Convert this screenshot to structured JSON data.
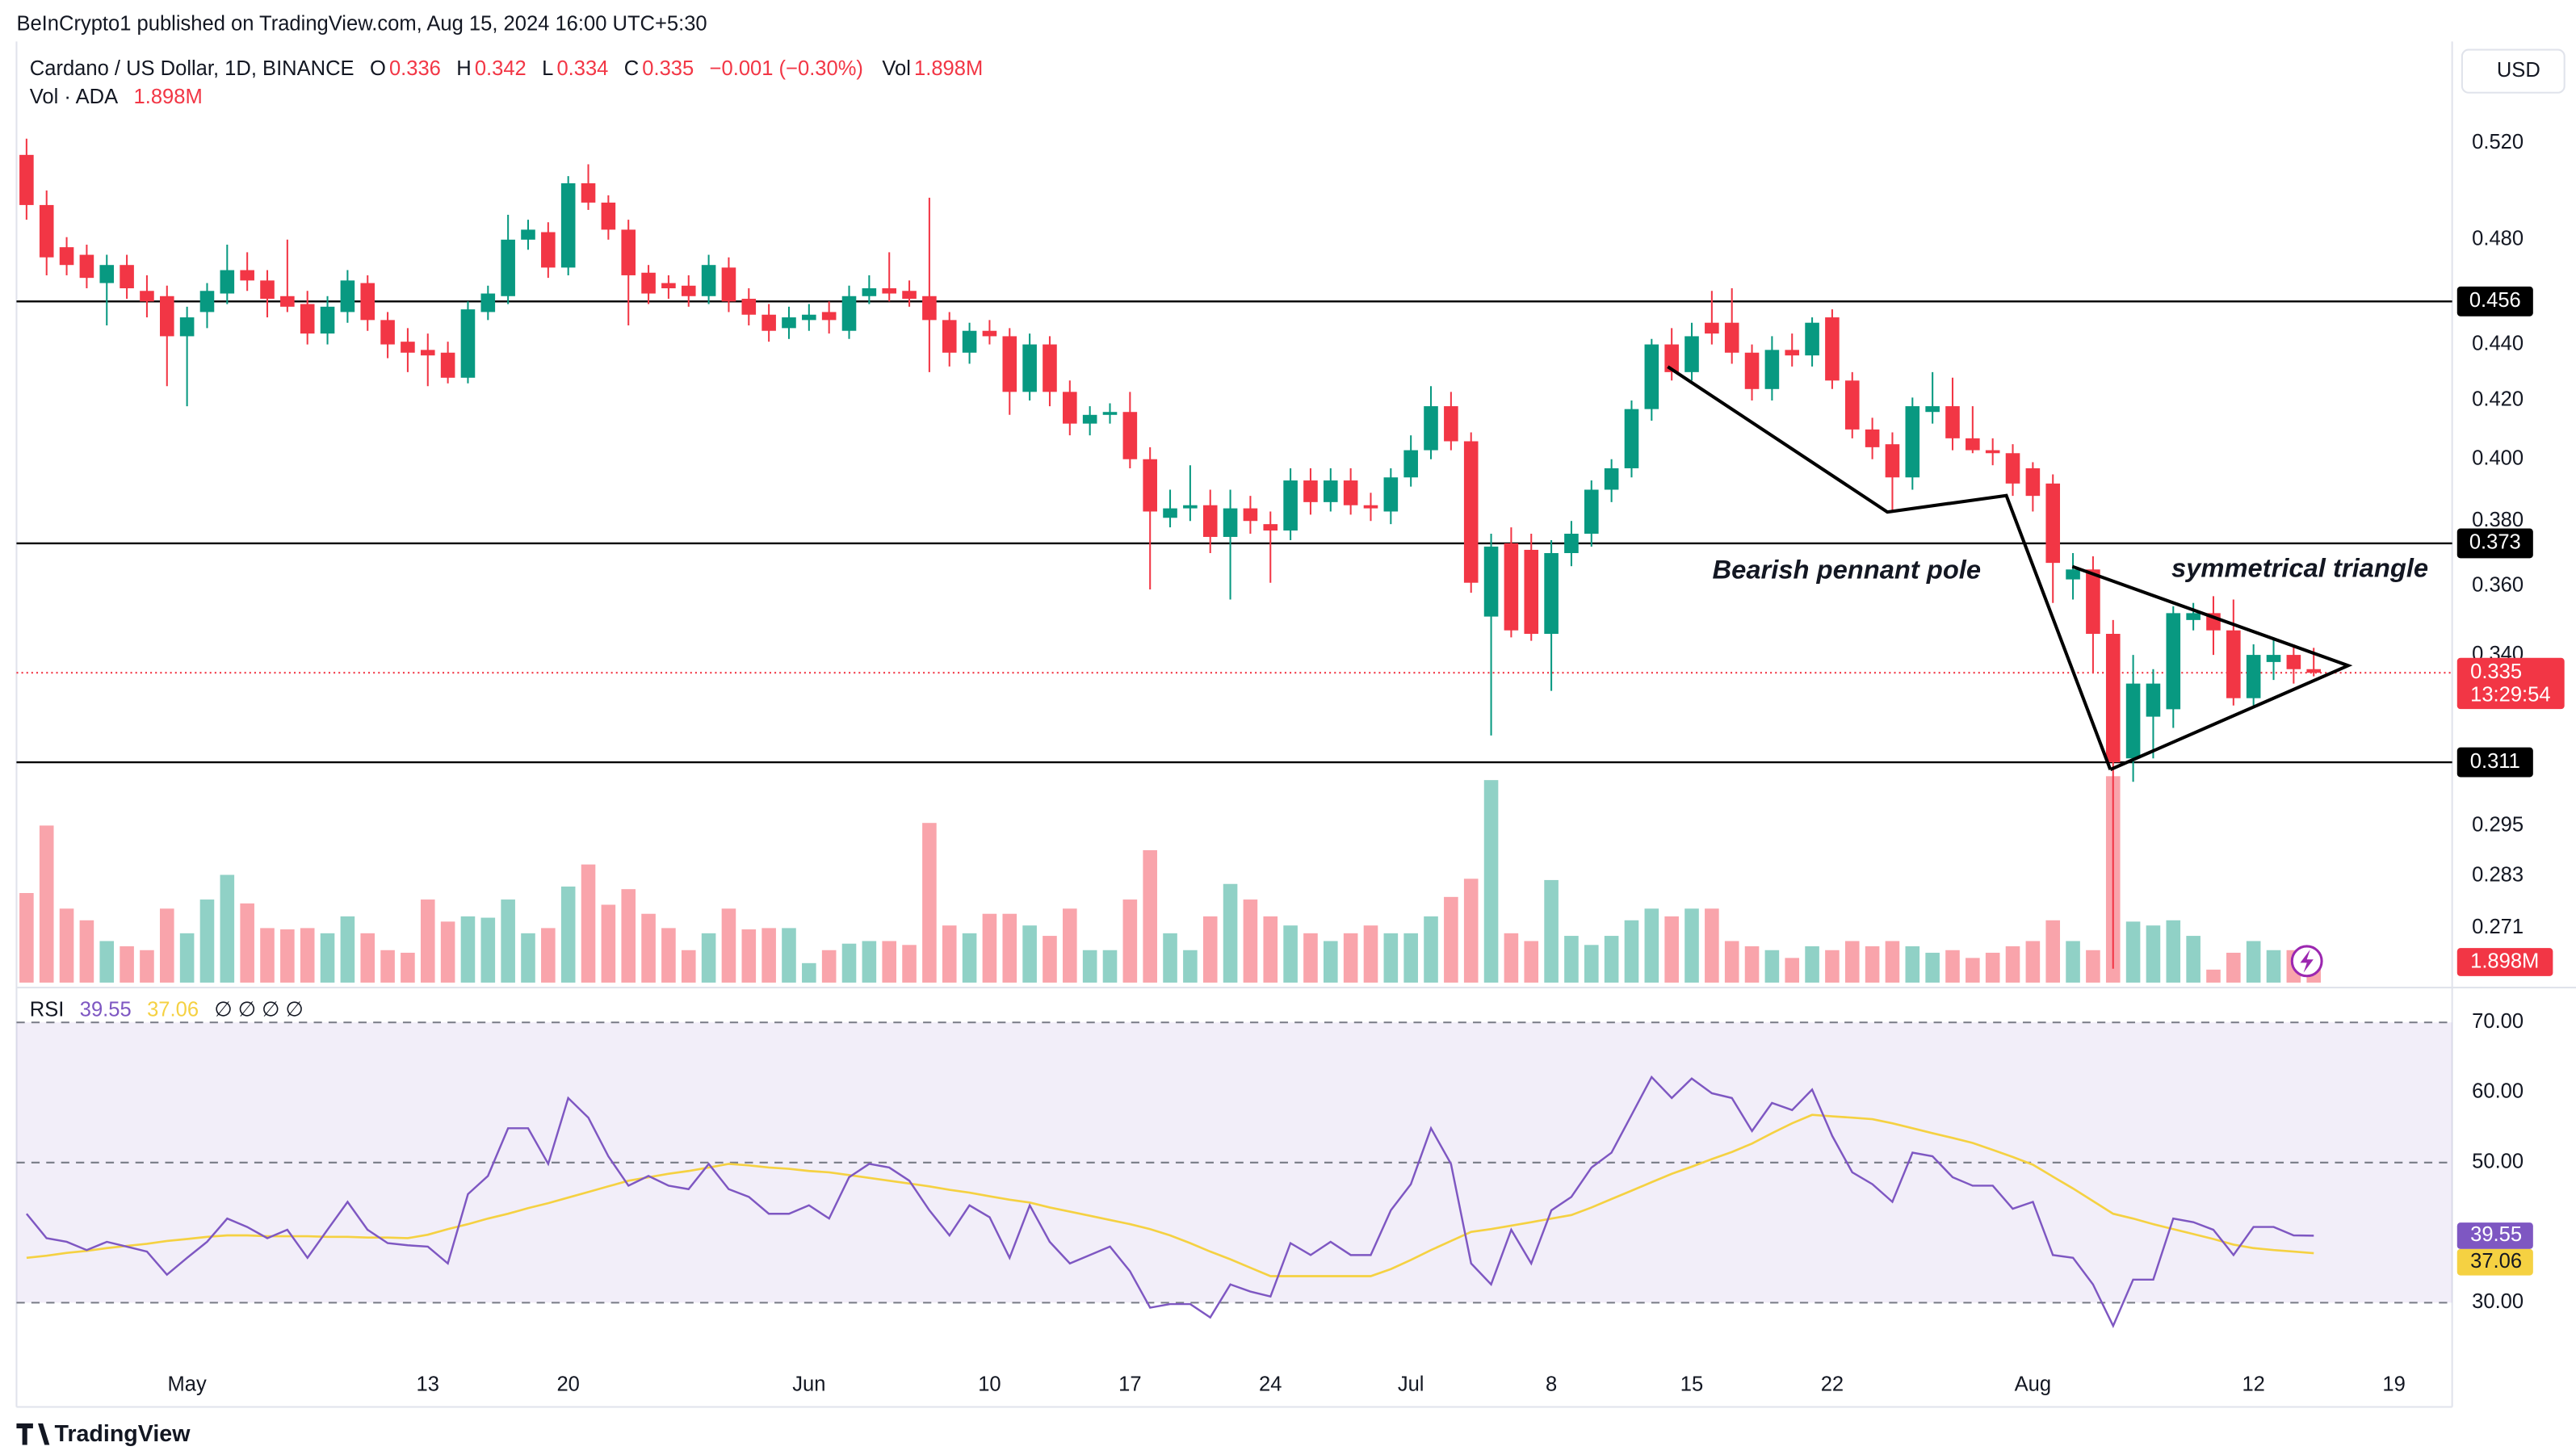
{
  "header": {
    "publisher": "BeInCrypto1 published on TradingView.com, Aug 15, 2024 16:00 UTC+5:30",
    "keys": [
      "O",
      "H",
      "L",
      "C",
      "Vol"
    ],
    "rsi_inputs": "∅ ∅ ∅ ∅",
    "brand": "TradingView"
  },
  "chart_data": [
    {
      "type": "candlestick",
      "title": "Cardano / US Dollar, 1D, BINANCE",
      "change": "−0.001 (−0.30%)",
      "currency": "USD",
      "countdown": "13:29:54",
      "log_scale": true,
      "grid": false,
      "up_color": "#089981",
      "down_color": "#f23645",
      "level_color": "#000000",
      "annotations": [
        "Bearish pennant pole",
        "symmetrical triangle"
      ],
      "xlim": [
        -0.5,
        120.9
      ],
      "xticks": [
        {
          "value": 8,
          "label": "May"
        },
        {
          "value": 20,
          "label": "13"
        },
        {
          "value": 27,
          "label": "20"
        },
        {
          "value": 39,
          "label": "Jun"
        },
        {
          "value": 48,
          "label": "10"
        },
        {
          "value": 55,
          "label": "17"
        },
        {
          "value": 62,
          "label": "24"
        },
        {
          "value": 69,
          "label": "Jul"
        },
        {
          "value": 76,
          "label": "8"
        },
        {
          "value": 83,
          "label": "15"
        },
        {
          "value": 90,
          "label": "22"
        },
        {
          "value": 100,
          "label": "Aug"
        },
        {
          "value": 111,
          "label": "12"
        },
        {
          "value": 118,
          "label": "19"
        }
      ],
      "ylim": [
        0.259,
        0.562
      ],
      "yticks": [
        {
          "value": 0.52,
          "label": "0.520"
        },
        {
          "value": 0.48,
          "label": "0.480"
        },
        {
          "value": 0.44,
          "label": "0.440"
        },
        {
          "value": 0.42,
          "label": "0.420"
        },
        {
          "value": 0.4,
          "label": "0.400"
        },
        {
          "value": 0.38,
          "label": "0.380"
        },
        {
          "value": 0.36,
          "label": "0.360"
        },
        {
          "value": 0.34,
          "label": "0.340"
        },
        {
          "value": 0.295,
          "label": "0.295"
        },
        {
          "value": 0.283,
          "label": "0.283"
        },
        {
          "value": 0.271,
          "label": "0.271"
        }
      ],
      "levels": [
        0.456,
        0.373,
        0.311
      ],
      "open": [
        0.515,
        0.494,
        0.477,
        0.474,
        0.463,
        0.47,
        0.46,
        0.458,
        0.443,
        0.452,
        0.459,
        0.468,
        0.464,
        0.458,
        0.455,
        0.444,
        0.452,
        0.463,
        0.449,
        0.441,
        0.438,
        0.437,
        0.428,
        0.452,
        0.458,
        0.48,
        0.483,
        0.469,
        0.503,
        0.495,
        0.484,
        0.467,
        0.463,
        0.462,
        0.458,
        0.469,
        0.457,
        0.451,
        0.446,
        0.449,
        0.452,
        0.445,
        0.458,
        0.461,
        0.46,
        0.458,
        0.449,
        0.437,
        0.445,
        0.443,
        0.423,
        0.44,
        0.423,
        0.412,
        0.415,
        0.416,
        0.4,
        0.381,
        0.384,
        0.385,
        0.375,
        0.384,
        0.379,
        0.377,
        0.393,
        0.386,
        0.393,
        0.385,
        0.383,
        0.394,
        0.403,
        0.418,
        0.406,
        0.351,
        0.373,
        0.371,
        0.346,
        0.37,
        0.376,
        0.39,
        0.397,
        0.417,
        0.44,
        0.43,
        0.448,
        0.448,
        0.437,
        0.424,
        0.438,
        0.436,
        0.45,
        0.427,
        0.41,
        0.405,
        0.394,
        0.416,
        0.418,
        0.407,
        0.403,
        0.402,
        0.397,
        0.392,
        0.362,
        0.365,
        0.346,
        0.312,
        0.323,
        0.325,
        0.35,
        0.352,
        0.347,
        0.328,
        0.338,
        0.34,
        0.336
      ],
      "high": [
        0.522,
        0.5,
        0.481,
        0.478,
        0.474,
        0.474,
        0.466,
        0.462,
        0.454,
        0.463,
        0.478,
        0.475,
        0.468,
        0.48,
        0.46,
        0.458,
        0.468,
        0.466,
        0.452,
        0.446,
        0.444,
        0.441,
        0.456,
        0.462,
        0.49,
        0.488,
        0.487,
        0.506,
        0.511,
        0.498,
        0.488,
        0.47,
        0.466,
        0.466,
        0.474,
        0.473,
        0.461,
        0.455,
        0.454,
        0.455,
        0.456,
        0.462,
        0.466,
        0.475,
        0.464,
        0.497,
        0.452,
        0.448,
        0.449,
        0.446,
        0.444,
        0.443,
        0.427,
        0.418,
        0.419,
        0.423,
        0.404,
        0.39,
        0.398,
        0.39,
        0.39,
        0.388,
        0.383,
        0.397,
        0.397,
        0.397,
        0.397,
        0.389,
        0.397,
        0.408,
        0.425,
        0.423,
        0.409,
        0.376,
        0.378,
        0.376,
        0.374,
        0.38,
        0.393,
        0.4,
        0.42,
        0.442,
        0.446,
        0.448,
        0.46,
        0.461,
        0.44,
        0.443,
        0.444,
        0.45,
        0.453,
        0.43,
        0.414,
        0.409,
        0.421,
        0.43,
        0.428,
        0.418,
        0.407,
        0.405,
        0.399,
        0.395,
        0.37,
        0.369,
        0.35,
        0.34,
        0.336,
        0.354,
        0.355,
        0.357,
        0.356,
        0.343,
        0.345,
        0.343,
        0.342
      ],
      "low": [
        0.488,
        0.466,
        0.466,
        0.461,
        0.447,
        0.457,
        0.45,
        0.425,
        0.418,
        0.446,
        0.455,
        0.46,
        0.45,
        0.452,
        0.44,
        0.44,
        0.448,
        0.445,
        0.435,
        0.43,
        0.425,
        0.426,
        0.426,
        0.449,
        0.455,
        0.476,
        0.465,
        0.466,
        0.492,
        0.48,
        0.447,
        0.455,
        0.457,
        0.454,
        0.455,
        0.452,
        0.447,
        0.441,
        0.442,
        0.445,
        0.444,
        0.442,
        0.455,
        0.456,
        0.454,
        0.43,
        0.432,
        0.433,
        0.44,
        0.415,
        0.42,
        0.418,
        0.408,
        0.408,
        0.412,
        0.397,
        0.359,
        0.378,
        0.38,
        0.37,
        0.356,
        0.376,
        0.361,
        0.374,
        0.382,
        0.383,
        0.382,
        0.38,
        0.379,
        0.391,
        0.4,
        0.403,
        0.358,
        0.318,
        0.345,
        0.344,
        0.33,
        0.366,
        0.372,
        0.386,
        0.394,
        0.413,
        0.427,
        0.427,
        0.44,
        0.433,
        0.42,
        0.42,
        0.432,
        0.432,
        0.424,
        0.407,
        0.4,
        0.383,
        0.39,
        0.412,
        0.403,
        0.402,
        0.398,
        0.388,
        0.383,
        0.355,
        0.356,
        0.335,
        0.262,
        0.306,
        0.312,
        0.32,
        0.347,
        0.34,
        0.326,
        0.326,
        0.333,
        0.332,
        0.334
      ],
      "close": [
        0.494,
        0.473,
        0.47,
        0.465,
        0.47,
        0.461,
        0.456,
        0.443,
        0.45,
        0.46,
        0.468,
        0.464,
        0.457,
        0.454,
        0.444,
        0.454,
        0.464,
        0.449,
        0.44,
        0.437,
        0.436,
        0.428,
        0.453,
        0.459,
        0.48,
        0.484,
        0.469,
        0.503,
        0.495,
        0.484,
        0.466,
        0.459,
        0.461,
        0.458,
        0.47,
        0.456,
        0.451,
        0.445,
        0.45,
        0.451,
        0.449,
        0.458,
        0.461,
        0.459,
        0.457,
        0.449,
        0.437,
        0.445,
        0.443,
        0.423,
        0.44,
        0.423,
        0.412,
        0.415,
        0.416,
        0.4,
        0.383,
        0.384,
        0.385,
        0.375,
        0.384,
        0.38,
        0.377,
        0.393,
        0.386,
        0.393,
        0.385,
        0.384,
        0.394,
        0.403,
        0.418,
        0.406,
        0.361,
        0.372,
        0.347,
        0.346,
        0.37,
        0.376,
        0.39,
        0.397,
        0.417,
        0.44,
        0.43,
        0.443,
        0.444,
        0.437,
        0.424,
        0.438,
        0.436,
        0.448,
        0.427,
        0.41,
        0.404,
        0.394,
        0.418,
        0.418,
        0.407,
        0.403,
        0.402,
        0.392,
        0.388,
        0.367,
        0.365,
        0.346,
        0.311,
        0.332,
        0.332,
        0.352,
        0.352,
        0.347,
        0.328,
        0.34,
        0.34,
        0.336,
        0.335
      ],
      "volume": {
        "name": "Vol · ADA",
        "values": [
          6.9,
          12.1,
          5.7,
          4.8,
          3.2,
          2.8,
          2.5,
          5.7,
          3.8,
          6.4,
          8.3,
          6.1,
          4.2,
          4.1,
          4.2,
          3.8,
          5.1,
          3.8,
          2.5,
          2.3,
          6.4,
          4.7,
          5.1,
          5.0,
          6.4,
          3.8,
          4.2,
          7.4,
          9.1,
          6.0,
          7.2,
          5.3,
          4.2,
          2.5,
          3.8,
          5.7,
          4.1,
          4.2,
          4.2,
          1.5,
          2.5,
          3.0,
          3.2,
          3.2,
          2.9,
          12.3,
          4.4,
          3.8,
          5.3,
          5.3,
          4.4,
          3.6,
          5.7,
          2.5,
          2.5,
          6.4,
          10.2,
          3.8,
          2.5,
          5.1,
          7.6,
          6.4,
          5.1,
          4.4,
          3.8,
          3.2,
          3.8,
          4.4,
          3.8,
          3.8,
          5.1,
          6.6,
          8.0,
          15.6,
          3.8,
          3.2,
          7.9,
          3.6,
          2.9,
          3.6,
          4.8,
          5.7,
          5.1,
          5.7,
          5.7,
          3.2,
          2.8,
          2.5,
          1.9,
          2.8,
          2.5,
          3.2,
          2.8,
          3.2,
          2.8,
          2.3,
          2.5,
          1.9,
          2.3,
          2.8,
          3.2,
          4.8,
          3.2,
          2.5,
          15.9,
          4.7,
          4.4,
          4.8,
          3.6,
          1.0,
          2.3,
          3.2,
          2.5,
          2.5,
          1.898
        ],
        "value_labels": [
          null,
          null,
          null,
          null,
          null,
          null,
          null,
          null,
          null,
          null,
          null,
          null,
          null,
          null,
          null,
          null,
          null,
          null,
          null,
          null,
          null,
          null,
          null,
          null,
          null,
          null,
          null,
          null,
          null,
          null,
          null,
          null,
          null,
          null,
          null,
          null,
          null,
          null,
          null,
          null,
          null,
          null,
          null,
          null,
          null,
          null,
          null,
          null,
          null,
          null,
          null,
          null,
          null,
          null,
          null,
          null,
          null,
          null,
          null,
          null,
          null,
          null,
          null,
          null,
          null,
          null,
          null,
          null,
          null,
          null,
          null,
          null,
          null,
          null,
          null,
          null,
          null,
          null,
          null,
          null,
          null,
          null,
          null,
          null,
          null,
          null,
          null,
          null,
          null,
          null,
          null,
          null,
          null,
          null,
          null,
          null,
          null,
          null,
          null,
          null,
          null,
          null,
          null,
          null,
          null,
          null,
          null,
          null,
          null,
          null,
          null,
          null,
          null,
          null,
          "1.898M"
        ]
      }
    },
    {
      "type": "line",
      "title": "RSI",
      "ylim": [
        15.6,
        74.5
      ],
      "yticks": [
        {
          "value": 70,
          "label": "70.00"
        },
        {
          "value": 60,
          "label": "60.00"
        },
        {
          "value": 50,
          "label": "50.00"
        },
        {
          "value": 30,
          "label": "30.00"
        }
      ],
      "levels": [
        70,
        50,
        30
      ],
      "band_color": "#7e57c2",
      "series": [
        {
          "color": "#7e57c2",
          "values": [
            42.7,
            39.2,
            38.7,
            37.5,
            38.7,
            38.0,
            37.3,
            34.0,
            36.4,
            38.7,
            42.0,
            40.8,
            39.2,
            40.4,
            36.4,
            40.4,
            44.4,
            40.4,
            38.5,
            38.2,
            38.0,
            35.6,
            45.5,
            48.1,
            54.9,
            54.9,
            49.8,
            59.2,
            56.4,
            50.9,
            46.7,
            48.1,
            46.7,
            46.2,
            49.8,
            46.2,
            45.1,
            42.7,
            42.7,
            43.9,
            42.0,
            47.9,
            49.8,
            49.3,
            47.4,
            43.2,
            39.6,
            43.9,
            42.2,
            36.4,
            43.9,
            38.7,
            35.6,
            36.8,
            38.0,
            34.5,
            29.3,
            29.8,
            29.8,
            27.9,
            32.6,
            31.6,
            30.9,
            38.5,
            36.8,
            38.7,
            36.8,
            36.8,
            43.2,
            46.9,
            54.9,
            49.8,
            35.6,
            32.6,
            40.4,
            35.6,
            43.2,
            45.1,
            49.3,
            51.4,
            56.8,
            62.2,
            59.2,
            62.0,
            59.9,
            59.2,
            54.5,
            58.5,
            57.5,
            60.4,
            53.8,
            48.6,
            46.9,
            44.4,
            51.4,
            50.9,
            47.9,
            46.7,
            46.7,
            43.4,
            44.4,
            36.8,
            36.4,
            32.6,
            26.7,
            33.3,
            33.3,
            42.0,
            41.5,
            40.4,
            36.8,
            40.8,
            40.8,
            39.6,
            39.55
          ]
        },
        {
          "color": "#f5d142",
          "values": [
            36.4,
            36.7,
            37.1,
            37.4,
            37.8,
            38.1,
            38.4,
            38.8,
            39.1,
            39.4,
            39.6,
            39.6,
            39.5,
            39.5,
            39.5,
            39.4,
            39.4,
            39.3,
            39.3,
            39.2,
            39.7,
            40.5,
            41.2,
            42.0,
            42.7,
            43.5,
            44.2,
            45.0,
            45.8,
            46.6,
            47.4,
            47.9,
            48.4,
            48.8,
            49.3,
            49.8,
            49.6,
            49.3,
            49.1,
            48.8,
            48.6,
            48.2,
            47.8,
            47.4,
            47.0,
            46.6,
            46.1,
            45.7,
            45.2,
            44.7,
            44.3,
            43.6,
            43.0,
            42.4,
            41.8,
            41.2,
            40.5,
            39.6,
            38.5,
            37.3,
            36.2,
            35.0,
            33.8,
            33.8,
            33.8,
            33.8,
            33.8,
            33.8,
            34.8,
            36.1,
            37.5,
            38.8,
            40.1,
            40.5,
            41.0,
            41.5,
            42.0,
            42.5,
            43.6,
            44.8,
            46.0,
            47.2,
            48.4,
            49.4,
            50.5,
            51.5,
            52.7,
            54.2,
            55.6,
            56.8,
            56.6,
            56.4,
            56.2,
            55.6,
            54.9,
            54.2,
            53.5,
            52.8,
            51.8,
            50.8,
            49.7,
            48.0,
            46.3,
            44.5,
            42.7,
            42.0,
            41.2,
            40.5,
            39.8,
            39.1,
            38.3,
            37.8,
            37.5,
            37.3,
            37.06
          ]
        }
      ]
    }
  ]
}
